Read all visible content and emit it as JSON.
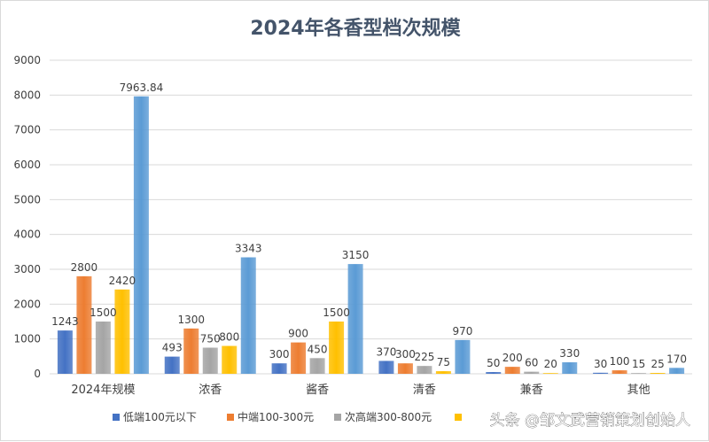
{
  "chart_data": {
    "type": "bar",
    "title": "2024年各香型档次规模",
    "xlabel": "",
    "ylabel": "",
    "ylim": [
      0,
      9000
    ],
    "yticks": [
      0,
      1000,
      2000,
      3000,
      4000,
      5000,
      6000,
      7000,
      8000,
      9000
    ],
    "grid": true,
    "legend_position": "bottom",
    "categories": [
      "2024年规模",
      "浓香",
      "酱香",
      "清香",
      "兼香",
      "其他"
    ],
    "series": [
      {
        "name": "低端100元以下",
        "color": "#4472c4",
        "values": [
          1243,
          493,
          300,
          370,
          50,
          30
        ],
        "labels": [
          "1243",
          "493",
          "300",
          "370",
          "50",
          "30"
        ]
      },
      {
        "name": "中端100-300元",
        "color": "#ed7d31",
        "values": [
          2800,
          1300,
          900,
          300,
          200,
          100
        ],
        "labels": [
          "2800",
          "1300",
          "900",
          "300",
          "200",
          "100"
        ]
      },
      {
        "name": "次高端300-800元",
        "color": "#a5a5a5",
        "values": [
          1500,
          750,
          450,
          225,
          60,
          15
        ],
        "labels": [
          "1500",
          "750",
          "450",
          "225",
          "60",
          "15"
        ]
      },
      {
        "name": "",
        "color": "#ffc000",
        "values": [
          2420,
          800,
          1500,
          75,
          20,
          25
        ],
        "labels": [
          "2420",
          "800",
          "1500",
          "75",
          "20",
          "25"
        ]
      },
      {
        "name": "",
        "color": "#5b9bd5",
        "values": [
          7963.84,
          3343,
          3150,
          970,
          330,
          170
        ],
        "labels": [
          "7963.84",
          "3343",
          "3150",
          "970",
          "330",
          "170"
        ]
      }
    ]
  },
  "watermark": "头条 @邹文武营销策划创始人"
}
